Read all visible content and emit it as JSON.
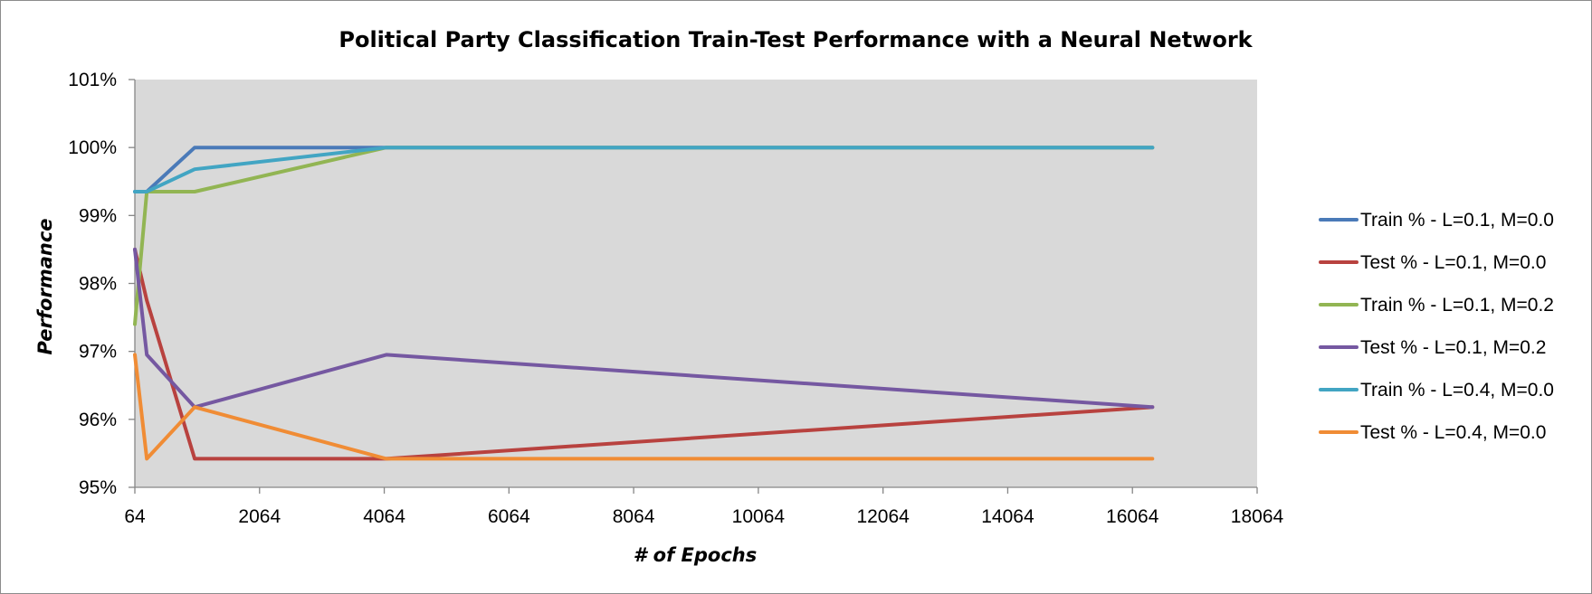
{
  "chart_data": {
    "type": "line",
    "title": "Political Party Classification Train-Test Performance with a Neural Network",
    "xlabel": "# of Epochs",
    "ylabel": "Performance",
    "xlim": [
      64,
      18064
    ],
    "ylim": [
      95,
      101
    ],
    "xticks": [
      "64",
      "2064",
      "4064",
      "6064",
      "8064",
      "10064",
      "12064",
      "14064",
      "16064",
      "18064"
    ],
    "yticks": [
      "95%",
      "96%",
      "97%",
      "98%",
      "99%",
      "100%",
      "101%"
    ],
    "legend_position": "right",
    "grid": false,
    "plot_background": "#d9d9d9",
    "series": [
      {
        "name": "Train % - L=0.1, M=0.0",
        "color": "#4a7ab8",
        "x": [
          64,
          256,
          1024,
          4096,
          16384
        ],
        "y": [
          99.35,
          99.35,
          100.0,
          100.0,
          100.0
        ]
      },
      {
        "name": "Test % - L=0.1, M=0.0",
        "color": "#b8423f",
        "x": [
          64,
          256,
          1024,
          4096,
          16384
        ],
        "y": [
          98.5,
          97.75,
          95.42,
          95.42,
          96.18
        ]
      },
      {
        "name": "Train % - L=0.1, M=0.2",
        "color": "#92b553",
        "x": [
          64,
          256,
          1024,
          4096,
          16384
        ],
        "y": [
          97.4,
          99.35,
          99.35,
          100.0,
          100.0
        ]
      },
      {
        "name": "Test % - L=0.1, M=0.2",
        "color": "#7558a1",
        "x": [
          64,
          256,
          1024,
          4096,
          16384
        ],
        "y": [
          98.5,
          96.95,
          96.18,
          96.95,
          96.18
        ]
      },
      {
        "name": "Train % - L=0.4, M=0.0",
        "color": "#42a5c3",
        "x": [
          64,
          256,
          1024,
          4096,
          16384
        ],
        "y": [
          99.35,
          99.35,
          99.68,
          100.0,
          100.0
        ]
      },
      {
        "name": "Test % - L=0.4, M=0.0",
        "color": "#f08c35",
        "x": [
          64,
          256,
          1024,
          4096,
          16384
        ],
        "y": [
          96.95,
          95.42,
          96.18,
          95.42,
          95.42
        ]
      }
    ]
  }
}
